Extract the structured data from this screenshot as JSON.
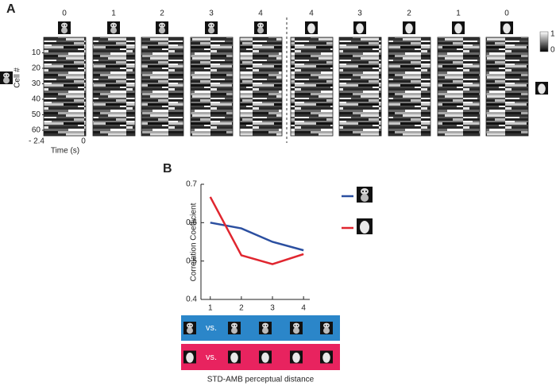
{
  "panel_a": {
    "label": "A",
    "column_labels": [
      0,
      1,
      2,
      3,
      4,
      4,
      3,
      2,
      1,
      0
    ],
    "y_axis_label": "Cell #",
    "yticks": [
      10,
      20,
      30,
      40,
      50,
      60
    ],
    "x_tick_labels": [
      "- 2.4",
      "0"
    ],
    "x_axis_label": "Time (s)",
    "colorbar_labels": [
      1,
      0
    ]
  },
  "chart_data": {
    "type": "line",
    "label": "B",
    "ylabel": "Correlation Coefficient",
    "xlabel": "STD-AMB perceptual distance",
    "x": [
      1,
      2,
      3,
      4
    ],
    "xlim": [
      0.7,
      4.2
    ],
    "xticks": [
      1,
      2,
      3,
      4
    ],
    "ylim": [
      0.4,
      0.7
    ],
    "yticks": [
      0.4,
      0.5,
      0.6,
      0.7
    ],
    "series": [
      {
        "color": "#2b4fa0",
        "values": [
          0.6,
          0.585,
          0.55,
          0.528
        ]
      },
      {
        "color": "#e0262f",
        "values": [
          0.667,
          0.515,
          0.492,
          0.518
        ]
      }
    ]
  },
  "comparison_rows": {
    "labels": [
      "vs.",
      "vs."
    ]
  }
}
